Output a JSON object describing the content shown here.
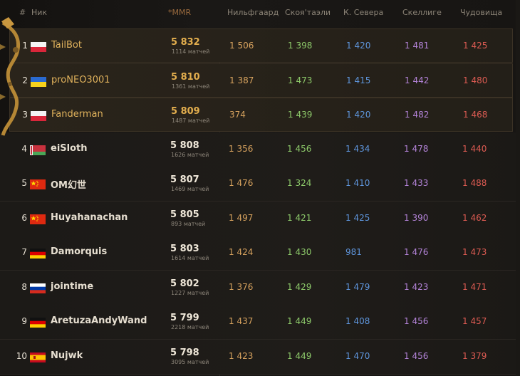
{
  "header": {
    "rank": "#",
    "nick": "Ник",
    "mmr": "*MMR",
    "nilfgaard": "Нильфгаард",
    "scoiatael": "Скоя'таэли",
    "northern": "К. Севера",
    "skellige": "Скеллиге",
    "monsters": "Чудовища"
  },
  "colors": {
    "gold": "#e3ae4e",
    "nilfgaard": "#d6a25e",
    "scoiatael": "#8dc96a",
    "northern": "#5e95db",
    "skellige": "#b383d8",
    "monsters": "#dc5b52"
  },
  "rows": [
    {
      "rank": "1",
      "flag": "poland",
      "nick": "TailBot",
      "mmr": "5 832",
      "matches": "1114 матчей",
      "nilfgaard": "1 506",
      "scoiatael": "1 398",
      "northern": "1 420",
      "skellige": "1 481",
      "monsters": "1 425"
    },
    {
      "rank": "2",
      "flag": "ukraine",
      "nick": "proNEO3001",
      "mmr": "5 810",
      "matches": "1361 матчей",
      "nilfgaard": "1 387",
      "scoiatael": "1 473",
      "northern": "1 415",
      "skellige": "1 442",
      "monsters": "1 480"
    },
    {
      "rank": "3",
      "flag": "poland",
      "nick": "Fanderman",
      "mmr": "5 809",
      "matches": "1487 матчей",
      "nilfgaard": "374",
      "scoiatael": "1 439",
      "northern": "1 420",
      "skellige": "1 482",
      "monsters": "1 468"
    },
    {
      "rank": "4",
      "flag": "belarus",
      "nick": "eiSloth",
      "mmr": "5 808",
      "matches": "1626 матчей",
      "nilfgaard": "1 356",
      "scoiatael": "1 456",
      "northern": "1 434",
      "skellige": "1 478",
      "monsters": "1 440"
    },
    {
      "rank": "5",
      "flag": "china",
      "nick": "OM幻世",
      "mmr": "5 807",
      "matches": "1469 матчей",
      "nilfgaard": "1 476",
      "scoiatael": "1 324",
      "northern": "1 410",
      "skellige": "1 433",
      "monsters": "1 488"
    },
    {
      "rank": "6",
      "flag": "china",
      "nick": "Huyahanachan",
      "mmr": "5 805",
      "matches": "893 матчей",
      "nilfgaard": "1 497",
      "scoiatael": "1 421",
      "northern": "1 425",
      "skellige": "1 390",
      "monsters": "1 462"
    },
    {
      "rank": "7",
      "flag": "germany",
      "nick": "Damorquis",
      "mmr": "5 803",
      "matches": "1614 матчей",
      "nilfgaard": "1 424",
      "scoiatael": "1 430",
      "northern": "981",
      "skellige": "1 476",
      "monsters": "1 473"
    },
    {
      "rank": "8",
      "flag": "russia",
      "nick": "jointime",
      "mmr": "5 802",
      "matches": "1227 матчей",
      "nilfgaard": "1 376",
      "scoiatael": "1 429",
      "northern": "1 479",
      "skellige": "1 423",
      "monsters": "1 471"
    },
    {
      "rank": "9",
      "flag": "germany",
      "nick": "AretuzaAndyWand",
      "mmr": "5 799",
      "matches": "2218 матчей",
      "nilfgaard": "1 437",
      "scoiatael": "1 449",
      "northern": "1 408",
      "skellige": "1 456",
      "monsters": "1 457"
    },
    {
      "rank": "10",
      "flag": "spain",
      "nick": "Nujwk",
      "mmr": "5 798",
      "matches": "3095 матчей",
      "nilfgaard": "1 423",
      "scoiatael": "1 449",
      "northern": "1 470",
      "skellige": "1 456",
      "monsters": "1 379"
    }
  ]
}
